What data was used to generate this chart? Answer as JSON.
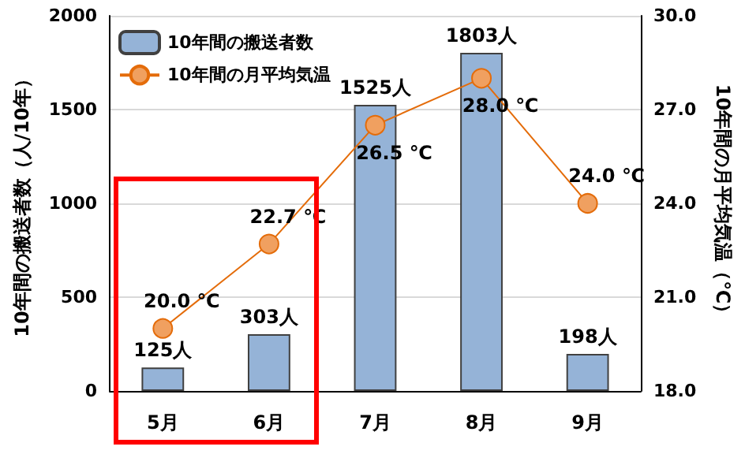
{
  "chart_data": {
    "type": "bar",
    "ylabel": "10年間の搬送者数（人/10年）",
    "y2label": "10年間の月平均気温（℃）",
    "categories": [
      "5月",
      "6月",
      "7月",
      "8月",
      "9月"
    ],
    "series": [
      {
        "name": "10年間の搬送者数",
        "color": "#95b3d7",
        "values": [
          125,
          303,
          1525,
          1803,
          198
        ],
        "value_labels": [
          "125人",
          "303人",
          "1525人",
          "1803人",
          "198人"
        ]
      },
      {
        "name": "10年間の月平均気温",
        "type": "line",
        "axis": "y2",
        "color": "#e46c0a",
        "values": [
          20.0,
          22.7,
          26.5,
          28.0,
          24.0
        ],
        "value_labels": [
          "20.0 ℃",
          "22.7 ℃",
          "26.5 ℃",
          "28.0 ℃",
          "24.0 ℃"
        ]
      }
    ],
    "ylim": [
      0,
      2000
    ],
    "yticks": [
      0,
      500,
      1000,
      1500,
      2000
    ],
    "y2lim": [
      18.0,
      30.0
    ],
    "y2ticks": [
      {
        "value": 18,
        "label": "18.0"
      },
      {
        "value": 21,
        "label": "21.0"
      },
      {
        "value": 24,
        "label": "24.0"
      },
      {
        "value": 27,
        "label": "27.0"
      },
      {
        "value": 30,
        "label": "30.0"
      }
    ],
    "grid": "y",
    "legend": "top left",
    "marker": "circle",
    "line_style": "solid"
  }
}
